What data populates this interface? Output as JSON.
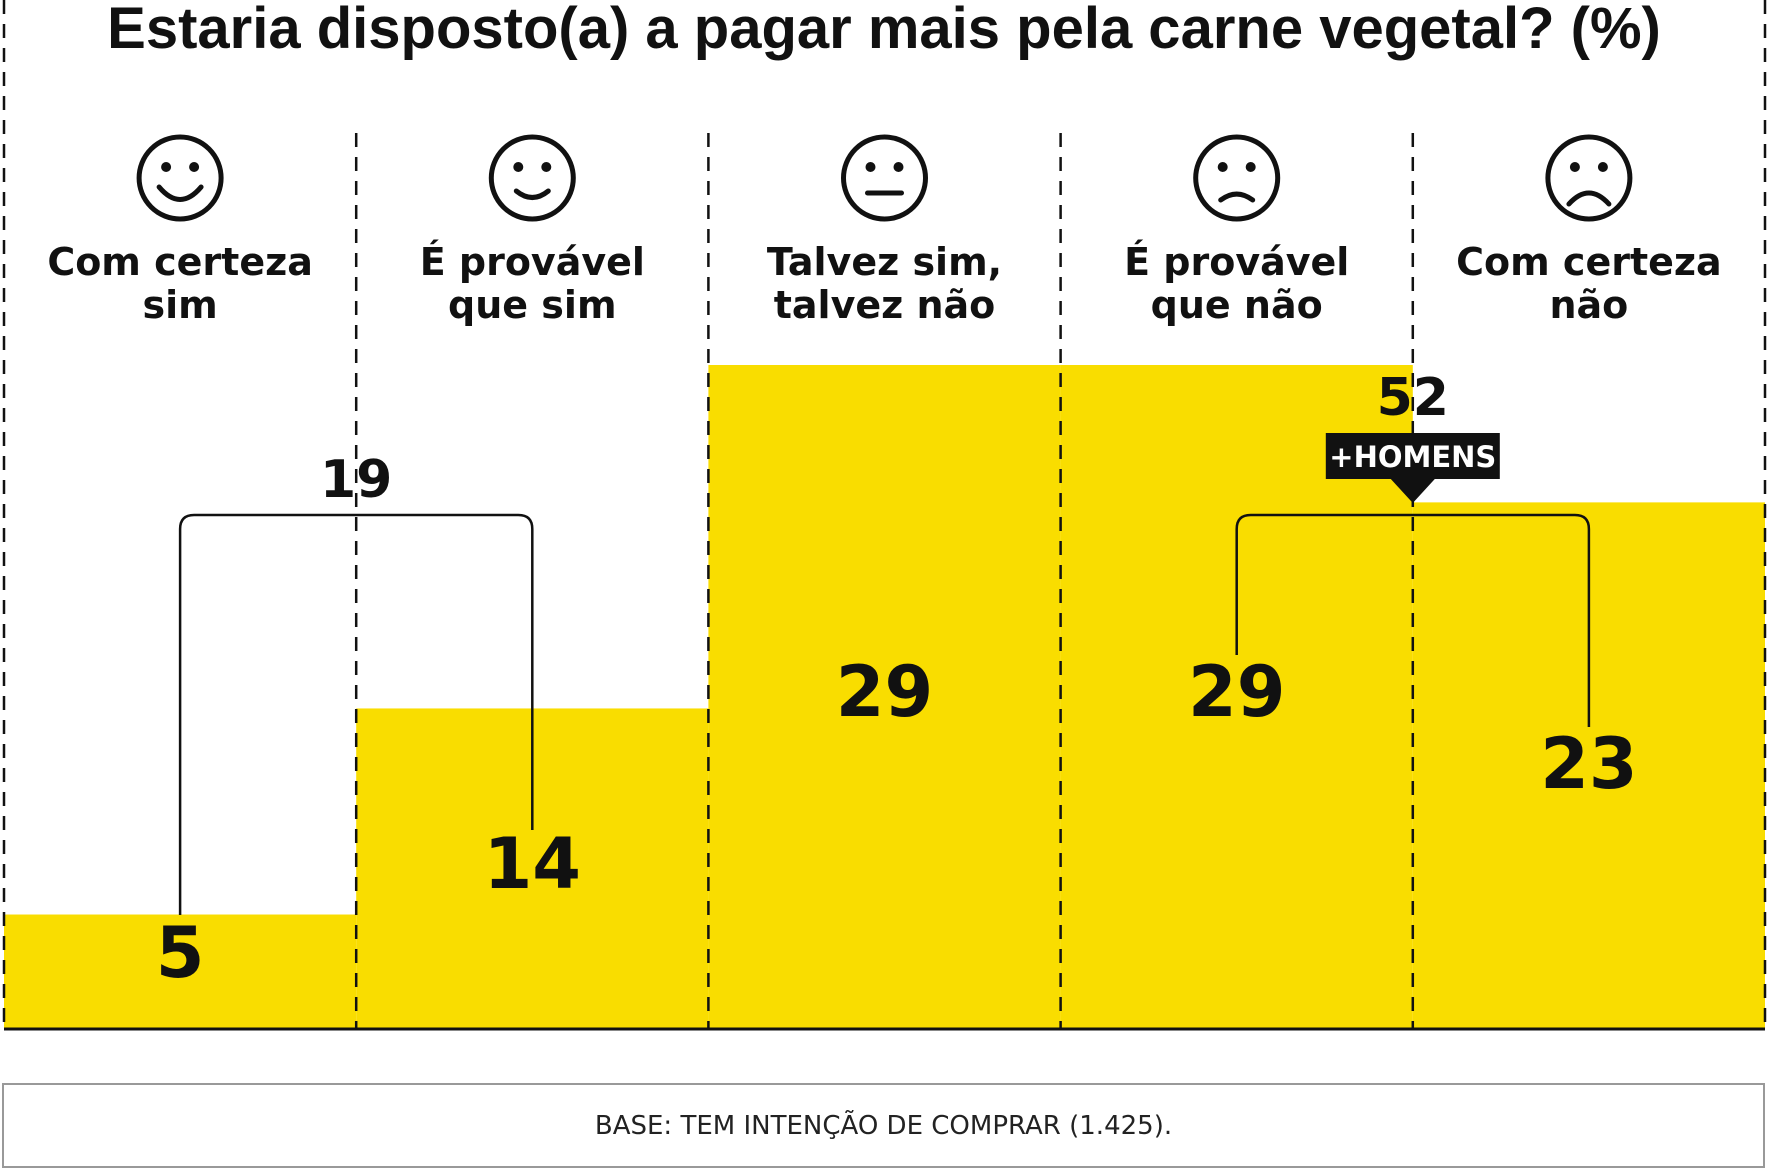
{
  "title": "Estaria disposto(a) a pagar mais pela carne vegetal? (%)",
  "colors": {
    "bar": "#f9dd00",
    "ink": "#111111",
    "bg": "#ffffff"
  },
  "icons": [
    "very-happy-face-icon",
    "happy-face-icon",
    "neutral-face-icon",
    "sad-face-icon",
    "very-sad-face-icon"
  ],
  "chart_data": {
    "type": "bar",
    "title": "Estaria disposto(a) a pagar mais pela carne vegetal? (%)",
    "categories": [
      [
        "Com certeza",
        "sim"
      ],
      [
        "É provável",
        "que sim"
      ],
      [
        "Talvez sim,",
        "talvez não"
      ],
      [
        "É provável",
        "que não"
      ],
      [
        "Com certeza",
        "não"
      ]
    ],
    "values": [
      5,
      14,
      29,
      29,
      23
    ],
    "value_labels": [
      "5",
      "14",
      "29",
      "29",
      "23"
    ],
    "ylim": [
      0,
      29
    ],
    "groups": [
      {
        "label": "19",
        "from": 0,
        "to": 1
      },
      {
        "label": "52",
        "from": 3,
        "to": 4,
        "tag": "+HOMENS"
      }
    ],
    "grid": false,
    "xlabel": "",
    "ylabel": ""
  },
  "note": "BASE: TEM INTENÇÃO DE COMPRAR (1.425)."
}
